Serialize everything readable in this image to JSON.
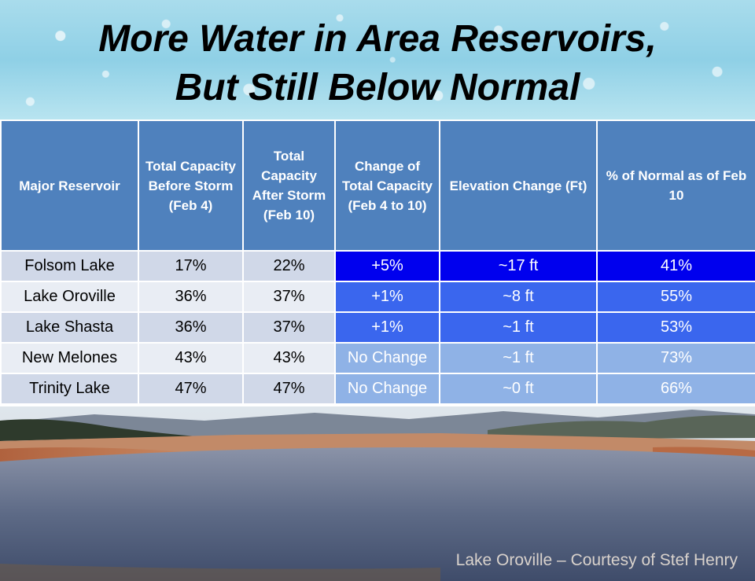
{
  "title_line1": "More Water in Area Reservoirs,",
  "title_line2": "But Still Below Normal",
  "table": {
    "headers": [
      "Major Reservoir",
      "Total Capacity Before Storm (Feb 4)",
      "Total Capacity After Storm (Feb 10)",
      "Change  of Total Capacity (Feb 4 to 10)",
      "Elevation Change (Ft)",
      "% of  Normal as of Feb 10"
    ],
    "rows": [
      {
        "reservoir": "Folsom Lake",
        "before": "17%",
        "after": "22%",
        "change": "+5%",
        "elevation": "~17 ft",
        "normal": "41%"
      },
      {
        "reservoir": "Lake Oroville",
        "before": "36%",
        "after": "37%",
        "change": "+1%",
        "elevation": "~8 ft",
        "normal": "55%"
      },
      {
        "reservoir": "Lake Shasta",
        "before": "36%",
        "after": "37%",
        "change": "+1%",
        "elevation": "~1 ft",
        "normal": "53%"
      },
      {
        "reservoir": "New Melones",
        "before": "43%",
        "after": "43%",
        "change": "No Change",
        "elevation": "~1 ft",
        "normal": "73%"
      },
      {
        "reservoir": "Trinity Lake",
        "before": "47%",
        "after": "47%",
        "change": "No Change",
        "elevation": "~0 ft",
        "normal": "66%"
      }
    ]
  },
  "caption": "Lake Oroville – Courtesy of Stef Henry",
  "colors": {
    "header": "#4f81bd",
    "strong": "#0000ee",
    "moderate": "#3a66ee",
    "light": "#8fb2e6"
  }
}
